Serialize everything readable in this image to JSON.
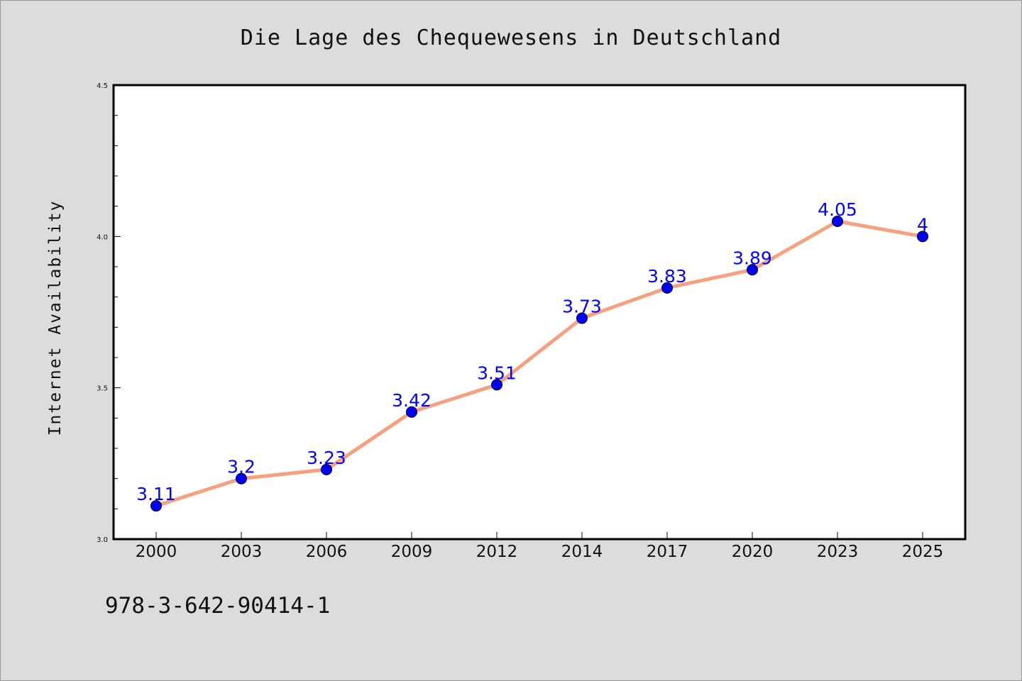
{
  "chart_data": {
    "type": "line",
    "title": "Die Lage des Chequewesens in Deutschland",
    "ylabel": "Internet Availability",
    "xlabel": "",
    "categories": [
      "2000",
      "2003",
      "2006",
      "2009",
      "2012",
      "2014",
      "2017",
      "2020",
      "2023",
      "2025"
    ],
    "series": [
      {
        "values": [
          3.11,
          3.2,
          3.23,
          3.42,
          3.51,
          3.73,
          3.83,
          3.89,
          4.05,
          4
        ],
        "line_color": "#f5a07f",
        "marker_color": "#0000ff",
        "label_color": "#0000ff"
      }
    ],
    "data_labels": [
      "3.11",
      "3.2",
      "3.23",
      "3.42",
      "3.51",
      "3.73",
      "3.83",
      "3.89",
      "4.05",
      "4"
    ],
    "ylim": [
      3.0,
      4.5
    ],
    "yticks": [
      "3.0",
      "3.5",
      "4.0",
      "4.5"
    ],
    "grid": false,
    "legend": "none"
  },
  "footer": {
    "isbn": "978-3-642-90414-1"
  }
}
